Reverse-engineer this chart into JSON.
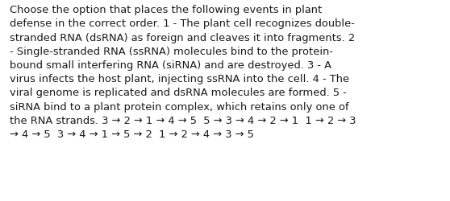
{
  "background_color": "#ffffff",
  "text_color": "#1a1a1a",
  "text": "Choose the option that places the following events in plant\ndefense in the correct order. 1 - The plant cell recognizes double-\nstranded RNA (dsRNA) as foreign and cleaves it into fragments. 2\n- Single-stranded RNA (ssRNA) molecules bind to the protein-\nbound small interfering RNA (siRNA) and are destroyed. 3 - A\nvirus infects the host plant, injecting ssRNA into the cell. 4 - The\nviral genome is replicated and dsRNA molecules are formed. 5 -\nsiRNA bind to a plant protein complex, which retains only one of\nthe RNA strands. 3 → 2 → 1 → 4 → 5  5 → 3 → 4 → 2 → 1  1 → 2 → 3\n→ 4 → 5  3 → 4 → 1 → 5 → 2  1 → 2 → 4 → 3 → 5",
  "fontsize": 9.4,
  "font_family": "DejaVu Sans",
  "figwidth": 5.58,
  "figheight": 2.51,
  "dpi": 100
}
